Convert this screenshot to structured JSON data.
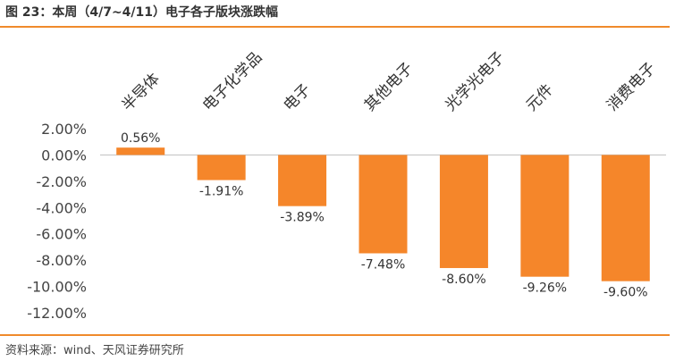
{
  "title": "图 23：本周（4/7~4/11）电子各子版块涨跌幅",
  "source": "资料来源：wind、天风证券研究所",
  "colors": {
    "bar": "#f5862a",
    "rule": "#f08a2b",
    "axis": "#bfbfbf"
  },
  "chart_data": {
    "type": "bar",
    "categories": [
      "半导体",
      "电子化学品",
      "电子",
      "其他电子",
      "光学光电子",
      "元件",
      "消费电子"
    ],
    "values": [
      0.56,
      -1.91,
      -3.89,
      -7.48,
      -8.6,
      -9.26,
      -9.6
    ],
    "data_labels": [
      "0.56%",
      "-1.91%",
      "-3.89%",
      "-7.48%",
      "-8.60%",
      "-9.26%",
      "-9.60%"
    ],
    "yticks": [
      "2.00%",
      "0.00%",
      "-2.00%",
      "-4.00%",
      "-6.00%",
      "-8.00%",
      "-10.00%",
      "-12.00%"
    ],
    "ytick_values": [
      2,
      0,
      -2,
      -4,
      -6,
      -8,
      -10,
      -12
    ],
    "ylim": [
      -12,
      2
    ],
    "title": "",
    "xlabel": "",
    "ylabel": "",
    "legend": "none",
    "grid": false,
    "category_label_position": "top-rotated"
  }
}
